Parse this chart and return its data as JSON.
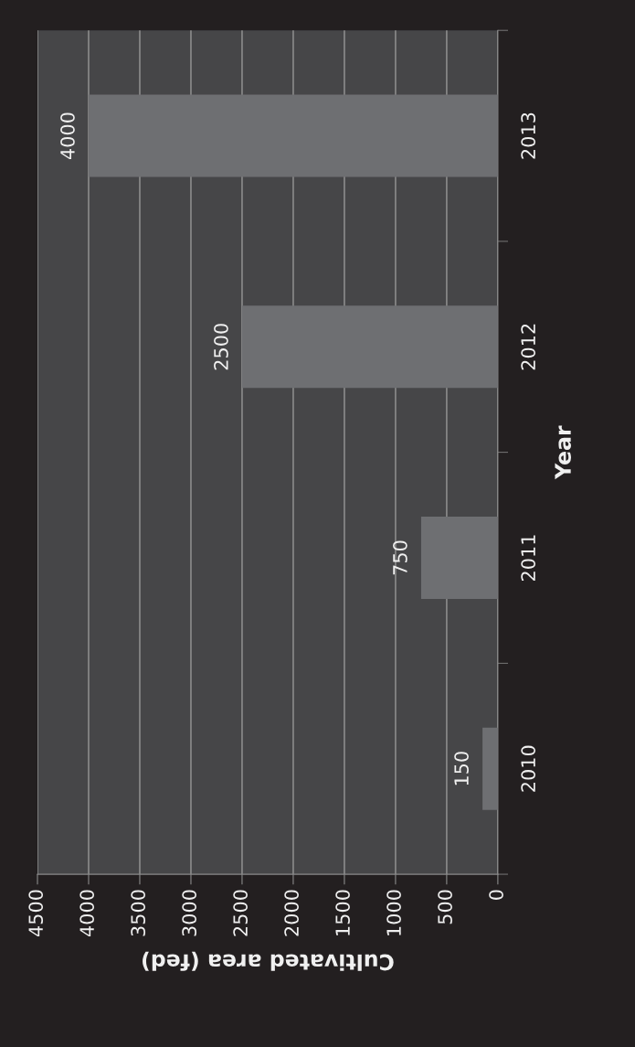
{
  "chart_data": {
    "type": "bar",
    "orientation": "horizontal",
    "categories": [
      "2013",
      "2012",
      "2011",
      "2010"
    ],
    "values": [
      4000,
      2500,
      750,
      150
    ],
    "color": "#6e6f72",
    "xlabel": "Cultivated area (fed)",
    "ylabel": "Year",
    "xlim": [
      4500,
      0
    ],
    "xticks": [
      4500,
      4000,
      3500,
      3000,
      2500,
      2000,
      1500,
      1000,
      500,
      0
    ],
    "grid": "x",
    "data_labels": true
  }
}
